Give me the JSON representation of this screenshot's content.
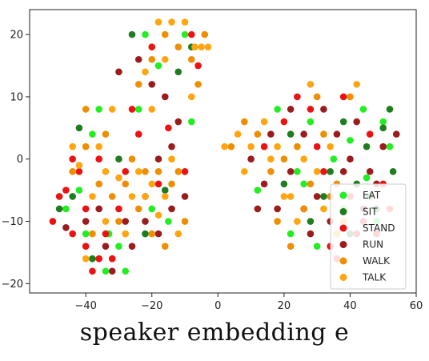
{
  "caption": "speaker embedding e",
  "chart_data": {
    "type": "scatter",
    "title": "",
    "xlabel": "",
    "ylabel": "",
    "xlim": [
      -57,
      60
    ],
    "ylim": [
      -21.5,
      24
    ],
    "xticks": [
      -40,
      -20,
      0,
      20,
      40,
      60
    ],
    "yticks": [
      -20,
      -10,
      0,
      10,
      20
    ],
    "grid": false,
    "legend_position": "lower-right",
    "series": [
      {
        "name": "EAT",
        "color": "#22ee22",
        "points": [
          [
            -42,
            -5
          ],
          [
            -38,
            4
          ],
          [
            -33,
            -12
          ],
          [
            -28,
            -18
          ],
          [
            -24,
            8
          ],
          [
            -18,
            15
          ],
          [
            -10,
            20
          ],
          [
            -20,
            -8
          ],
          [
            -36,
            8
          ],
          [
            -46,
            -8
          ],
          [
            -30,
            -14
          ],
          [
            -15,
            -10
          ],
          [
            22,
            -12
          ],
          [
            28,
            6
          ],
          [
            35,
            0
          ],
          [
            40,
            3
          ],
          [
            45,
            -3
          ],
          [
            50,
            6
          ],
          [
            18,
            8
          ],
          [
            26,
            -4
          ],
          [
            30,
            -14
          ],
          [
            38,
            -8
          ],
          [
            48,
            -10
          ],
          [
            52,
            2
          ],
          [
            24,
            -2
          ],
          [
            44,
            8
          ],
          [
            -8,
            6
          ],
          [
            -22,
            20
          ],
          [
            -40,
            -12
          ],
          [
            -34,
            -18
          ],
          [
            12,
            -5
          ],
          [
            36,
            -12
          ]
        ]
      },
      {
        "name": "SIT",
        "color": "#1e7d1e",
        "points": [
          [
            -48,
            -8
          ],
          [
            -42,
            5
          ],
          [
            -26,
            20
          ],
          [
            -16,
            -5
          ],
          [
            -12,
            14
          ],
          [
            32,
            -6
          ],
          [
            42,
            -4
          ],
          [
            48,
            -8
          ],
          [
            50,
            5
          ],
          [
            53,
            -2
          ],
          [
            45,
            2
          ],
          [
            38,
            6
          ],
          [
            28,
            -10
          ],
          [
            22,
            4
          ],
          [
            -30,
            0
          ],
          [
            -38,
            -16
          ],
          [
            -22,
            -12
          ],
          [
            46,
            -6
          ],
          [
            52,
            8
          ],
          [
            34,
            -2
          ],
          [
            40,
            -12
          ],
          [
            20,
            -4
          ],
          [
            -44,
            -6
          ],
          [
            -8,
            18
          ]
        ]
      },
      {
        "name": "STAND",
        "color": "#ee1111",
        "points": [
          [
            -50,
            -10
          ],
          [
            -46,
            -5
          ],
          [
            -44,
            0
          ],
          [
            -40,
            -14
          ],
          [
            -36,
            -16
          ],
          [
            -34,
            -12
          ],
          [
            -30,
            -8
          ],
          [
            -38,
            -18
          ],
          [
            -32,
            -16
          ],
          [
            -26,
            8
          ],
          [
            -20,
            18
          ],
          [
            -15,
            5
          ],
          [
            -10,
            -2
          ],
          [
            -8,
            20
          ],
          [
            -6,
            15
          ],
          [
            -42,
            -2
          ],
          [
            -36,
            0
          ],
          [
            20,
            6
          ],
          [
            26,
            -8
          ],
          [
            30,
            2
          ],
          [
            34,
            -14
          ],
          [
            40,
            -6
          ],
          [
            44,
            -10
          ],
          [
            50,
            -4
          ],
          [
            52,
            -8
          ],
          [
            46,
            4
          ],
          [
            38,
            10
          ],
          [
            32,
            -2
          ],
          [
            24,
            10
          ],
          [
            42,
            -12
          ],
          [
            36,
            -16
          ],
          [
            48,
            -12
          ],
          [
            -28,
            -2
          ],
          [
            -18,
            -4
          ],
          [
            -24,
            4
          ],
          [
            -48,
            -6
          ],
          [
            28,
            8
          ],
          [
            14,
            2
          ],
          [
            -44,
            -12
          ],
          [
            -40,
            -8
          ]
        ]
      },
      {
        "name": "RUN",
        "color": "#9b1c1c",
        "points": [
          [
            -46,
            -11
          ],
          [
            -40,
            -10
          ],
          [
            -34,
            -14
          ],
          [
            -28,
            -10
          ],
          [
            -22,
            -6
          ],
          [
            -18,
            0
          ],
          [
            -14,
            -8
          ],
          [
            -12,
            6
          ],
          [
            -16,
            10
          ],
          [
            -20,
            12
          ],
          [
            -24,
            16
          ],
          [
            -30,
            14
          ],
          [
            -10,
            -6
          ],
          [
            -18,
            -12
          ],
          [
            -26,
            -14
          ],
          [
            10,
            0
          ],
          [
            14,
            -4
          ],
          [
            18,
            -8
          ],
          [
            22,
            -2
          ],
          [
            26,
            4
          ],
          [
            30,
            -6
          ],
          [
            34,
            -10
          ],
          [
            38,
            -2
          ],
          [
            42,
            6
          ],
          [
            46,
            -2
          ],
          [
            50,
            2
          ],
          [
            28,
            -12
          ],
          [
            16,
            4
          ],
          [
            22,
            8
          ],
          [
            32,
            8
          ],
          [
            36,
            4
          ],
          [
            44,
            -8
          ],
          [
            48,
            -4
          ],
          [
            -32,
            -18
          ],
          [
            -36,
            -8
          ],
          [
            -14,
            2
          ],
          [
            -22,
            -10
          ],
          [
            12,
            -8
          ],
          [
            40,
            0
          ],
          [
            54,
            4
          ]
        ]
      },
      {
        "name": "WALK",
        "color": "#ee8e00",
        "points": [
          [
            -44,
            -2
          ],
          [
            -40,
            2
          ],
          [
            -36,
            -4
          ],
          [
            -32,
            -6
          ],
          [
            -28,
            -4
          ],
          [
            -24,
            12
          ],
          [
            -20,
            16
          ],
          [
            -16,
            20
          ],
          [
            -12,
            18
          ],
          [
            -8,
            16
          ],
          [
            -6,
            12
          ],
          [
            -4,
            20
          ],
          [
            -18,
            -2
          ],
          [
            -22,
            -2
          ],
          [
            -14,
            -4
          ],
          [
            -10,
            -10
          ],
          [
            -16,
            -14
          ],
          [
            -20,
            -12
          ],
          [
            -24,
            -8
          ],
          [
            -30,
            -10
          ],
          [
            4,
            2
          ],
          [
            8,
            6
          ],
          [
            12,
            4
          ],
          [
            16,
            -2
          ],
          [
            20,
            0
          ],
          [
            24,
            2
          ],
          [
            28,
            -4
          ],
          [
            32,
            4
          ],
          [
            36,
            -4
          ],
          [
            40,
            10
          ],
          [
            26,
            -8
          ],
          [
            22,
            -14
          ],
          [
            18,
            -10
          ],
          [
            30,
            10
          ],
          [
            34,
            -6
          ],
          [
            -40,
            8
          ],
          [
            -34,
            4
          ],
          [
            -38,
            -12
          ],
          [
            -26,
            0
          ],
          [
            -12,
            -2
          ]
        ]
      },
      {
        "name": "TALK",
        "color": "#ffa510",
        "points": [
          [
            -42,
            -1
          ],
          [
            -38,
            -6
          ],
          [
            -34,
            -2
          ],
          [
            -30,
            -3
          ],
          [
            -26,
            -6
          ],
          [
            -22,
            14
          ],
          [
            -18,
            22
          ],
          [
            -14,
            22
          ],
          [
            -10,
            22
          ],
          [
            -7,
            18
          ],
          [
            -5,
            18
          ],
          [
            -3,
            18
          ],
          [
            -20,
            -4
          ],
          [
            -16,
            -6
          ],
          [
            -12,
            -12
          ],
          [
            -18,
            -9
          ],
          [
            -22,
            -6
          ],
          [
            -28,
            -12
          ],
          [
            -34,
            -10
          ],
          [
            -40,
            -16
          ],
          [
            6,
            4
          ],
          [
            10,
            2
          ],
          [
            14,
            6
          ],
          [
            18,
            2
          ],
          [
            22,
            -6
          ],
          [
            26,
            0
          ],
          [
            30,
            -2
          ],
          [
            34,
            2
          ],
          [
            38,
            -10
          ],
          [
            42,
            12
          ],
          [
            24,
            -10
          ],
          [
            20,
            -6
          ],
          [
            16,
            0
          ],
          [
            28,
            12
          ],
          [
            32,
            -8
          ],
          [
            -44,
            2
          ],
          [
            -36,
            2
          ],
          [
            -32,
            8
          ],
          [
            -24,
            -2
          ],
          [
            -14,
            0
          ],
          [
            2,
            2
          ],
          [
            -20,
            8
          ],
          [
            -16,
            16
          ],
          [
            8,
            -2
          ],
          [
            36,
            -12
          ],
          [
            -8,
            10
          ]
        ]
      }
    ]
  }
}
